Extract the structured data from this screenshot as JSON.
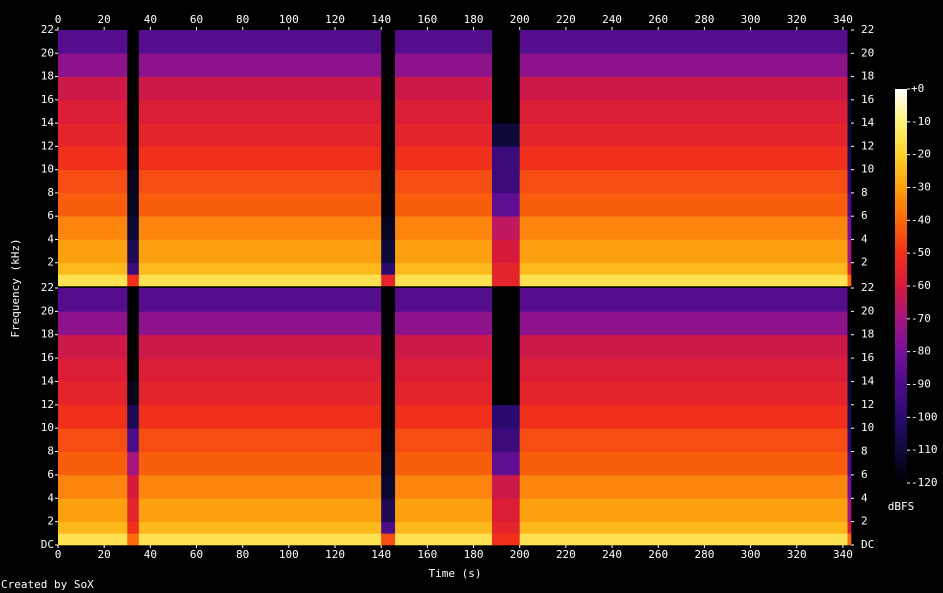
{
  "chart_data": {
    "type": "spectrogram",
    "xlabel": "Time (s)",
    "ylabel": "Frequency (kHz)",
    "colorbar_label": "dBFS",
    "credit": "Created by SoX",
    "xlim": [
      0,
      343.5
    ],
    "xticks": [
      0,
      20,
      40,
      60,
      80,
      100,
      120,
      140,
      160,
      180,
      200,
      220,
      240,
      260,
      280,
      300,
      320,
      340
    ],
    "xbins": [
      0,
      30,
      35,
      140,
      146,
      188,
      200,
      342,
      343.5
    ],
    "ybins": [
      0,
      1,
      2,
      4,
      6,
      8,
      10,
      12,
      14,
      16,
      18,
      20,
      22
    ],
    "zlim": [
      -120,
      0
    ],
    "colorscale": [
      "#000000",
      "#0d0a3a",
      "#2a0a6e",
      "#4b0c8a",
      "#75109a",
      "#a5157f",
      "#d61a3c",
      "#f0301a",
      "#fb6a0a",
      "#fda010",
      "#fdd228",
      "#fef27a",
      "#ffffff"
    ],
    "colorbar_ticks": [
      {
        "value": 0,
        "label": "+0"
      },
      -10,
      -20,
      -30,
      -40,
      -50,
      -60,
      -70,
      -80,
      -90,
      -100,
      -110,
      -120
    ],
    "panels": [
      {
        "ylim": [
          0,
          22
        ],
        "yticks": [
          2,
          4,
          6,
          8,
          10,
          12,
          14,
          16,
          18,
          20,
          22
        ],
        "z": [
          [
            -15,
            -50,
            -15,
            -55,
            -15,
            -55,
            -15,
            -40
          ],
          [
            -25,
            -95,
            -25,
            -100,
            -25,
            -55,
            -25,
            -60
          ],
          [
            -30,
            -105,
            -30,
            -110,
            -30,
            -60,
            -30,
            -70
          ],
          [
            -35,
            -110,
            -35,
            -115,
            -35,
            -65,
            -35,
            -80
          ],
          [
            -42,
            -115,
            -42,
            -118,
            -42,
            -85,
            -42,
            -90
          ],
          [
            -45,
            -115,
            -45,
            -120,
            -45,
            -95,
            -45,
            -100
          ],
          [
            -50,
            -118,
            -50,
            -120,
            -50,
            -95,
            -50,
            -105
          ],
          [
            -55,
            -120,
            -55,
            -120,
            -55,
            -110,
            -55,
            -110
          ],
          [
            -58,
            -120,
            -58,
            -120,
            -58,
            -120,
            -58,
            -112
          ],
          [
            -62,
            -120,
            -62,
            -120,
            -62,
            -120,
            -62,
            -115
          ],
          [
            -75,
            -120,
            -75,
            -120,
            -75,
            -120,
            -75,
            -118
          ],
          [
            -88,
            -120,
            -88,
            -120,
            -88,
            -120,
            -88,
            -120
          ]
        ]
      },
      {
        "ylim": [
          0,
          22
        ],
        "yticks": [
          {
            "value": 0,
            "label": "DC"
          },
          2,
          4,
          6,
          8,
          10,
          12,
          14,
          16,
          18,
          20,
          22
        ],
        "z": [
          [
            -15,
            -40,
            -15,
            -45,
            -15,
            -50,
            -15,
            -40
          ],
          [
            -25,
            -50,
            -25,
            -90,
            -25,
            -55,
            -25,
            -60
          ],
          [
            -30,
            -55,
            -30,
            -105,
            -30,
            -58,
            -30,
            -70
          ],
          [
            -35,
            -60,
            -35,
            -112,
            -35,
            -62,
            -35,
            -80
          ],
          [
            -42,
            -70,
            -42,
            -115,
            -42,
            -85,
            -42,
            -90
          ],
          [
            -45,
            -90,
            -45,
            -118,
            -45,
            -95,
            -45,
            -100
          ],
          [
            -50,
            -105,
            -50,
            -120,
            -50,
            -100,
            -50,
            -105
          ],
          [
            -55,
            -115,
            -55,
            -120,
            -55,
            -120,
            -55,
            -110
          ],
          [
            -58,
            -120,
            -58,
            -120,
            -58,
            -120,
            -58,
            -112
          ],
          [
            -62,
            -120,
            -62,
            -120,
            -62,
            -120,
            -62,
            -115
          ],
          [
            -75,
            -120,
            -75,
            -120,
            -75,
            -120,
            -75,
            -118
          ],
          [
            -88,
            -120,
            -88,
            -120,
            -88,
            -120,
            -88,
            -120
          ]
        ]
      }
    ]
  }
}
